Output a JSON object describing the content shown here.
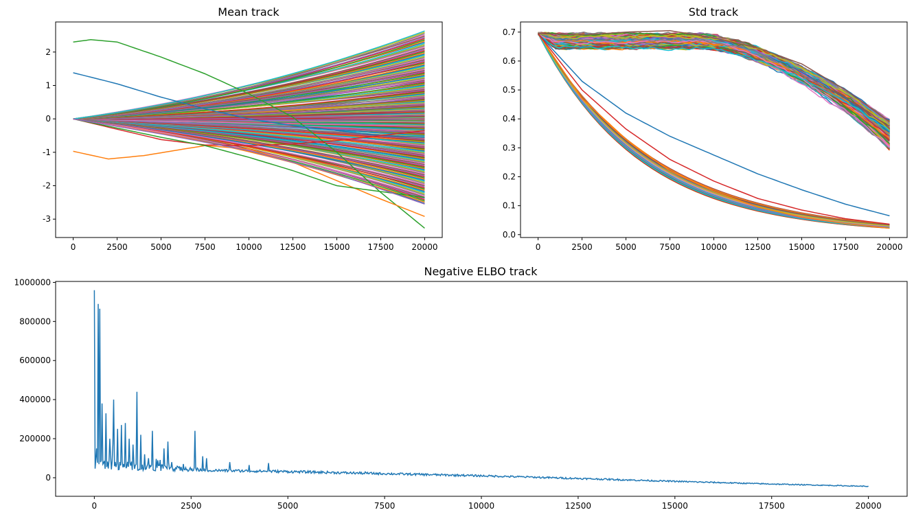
{
  "chart_data": [
    {
      "type": "line",
      "title": "Mean track",
      "xlabel": "",
      "ylabel": "",
      "xlim": [
        -1000,
        21000
      ],
      "ylim": [
        -3.55,
        2.9
      ],
      "xticks": [
        0,
        2500,
        5000,
        7500,
        10000,
        12500,
        15000,
        17500,
        20000
      ],
      "yticks": [
        -3,
        -2,
        -1,
        0,
        1,
        2
      ],
      "grid": false,
      "legend": "none",
      "bundle": {
        "count": 220,
        "x_range": [
          0,
          20000
        ],
        "start": 0,
        "end_range": [
          -2.55,
          2.65
        ]
      },
      "series": [
        {
          "color": "#2ca02c",
          "x": [
            0,
            1000,
            2500,
            5000,
            7500,
            10000,
            12500,
            15000,
            17500,
            20000
          ],
          "values": [
            2.3,
            2.37,
            2.3,
            1.85,
            1.35,
            0.75,
            0.05,
            -1.0,
            -2.2,
            -3.27
          ]
        },
        {
          "color": "#1f77b4",
          "x": [
            0,
            2500,
            5000,
            7500,
            10000,
            12500,
            15000,
            17500,
            20000
          ],
          "values": [
            1.38,
            1.05,
            0.65,
            0.3,
            0.0,
            -0.2,
            -0.35,
            -0.5,
            -0.55
          ]
        },
        {
          "color": "#ff7f0e",
          "x": [
            0,
            2000,
            4000,
            7500,
            10000,
            12500,
            15000,
            17500,
            20000
          ],
          "values": [
            -0.97,
            -1.2,
            -1.1,
            -0.8,
            -0.9,
            -1.3,
            -1.85,
            -2.4,
            -2.92
          ]
        },
        {
          "color": "#d62728",
          "x": [
            0,
            5000,
            7500,
            10000,
            12500,
            15000,
            17500,
            20000
          ],
          "values": [
            0,
            -0.62,
            -0.78,
            -0.8,
            -0.75,
            -0.65,
            -0.5,
            -0.35
          ]
        },
        {
          "color": "#2ca02c",
          "x": [
            0,
            5000,
            7500,
            10000,
            12500,
            15000,
            20000
          ],
          "values": [
            0,
            -0.55,
            -0.8,
            -1.15,
            -1.55,
            -2.0,
            -2.35
          ]
        },
        {
          "color": "#9467bd",
          "x": [
            0,
            5000,
            10000,
            15000,
            20000
          ],
          "values": [
            0,
            -0.45,
            -0.95,
            -1.65,
            -2.55
          ]
        }
      ]
    },
    {
      "type": "line",
      "title": "Std track",
      "xlabel": "",
      "ylabel": "",
      "xlim": [
        -1000,
        21000
      ],
      "ylim": [
        -0.01,
        0.735
      ],
      "xticks": [
        0,
        2500,
        5000,
        7500,
        10000,
        12500,
        15000,
        17500,
        20000
      ],
      "yticks": [
        0.0,
        0.1,
        0.2,
        0.3,
        0.4,
        0.5,
        0.6,
        0.7
      ],
      "grid": false,
      "legend": "none",
      "upper_band": {
        "count": 180,
        "start": 0.695,
        "plateau": 0.67,
        "end_range": [
          0.295,
          0.395
        ]
      },
      "lower_band": {
        "count": 60,
        "start": 0.695,
        "end_range": [
          0.022,
          0.036
        ]
      },
      "series": [
        {
          "color": "#1f77b4",
          "x": [
            0,
            2500,
            5000,
            7500,
            10000,
            12500,
            15000,
            17500,
            20000
          ],
          "values": [
            0.695,
            0.53,
            0.42,
            0.34,
            0.275,
            0.21,
            0.155,
            0.105,
            0.065
          ]
        },
        {
          "color": "#ff7f0e",
          "x": [
            0,
            2500,
            5000,
            7500,
            10000,
            12500,
            15000,
            17500,
            20000
          ],
          "values": [
            0.695,
            0.47,
            0.33,
            0.22,
            0.15,
            0.095,
            0.06,
            0.038,
            0.022
          ]
        },
        {
          "color": "#d62728",
          "x": [
            0,
            2500,
            5000,
            7500,
            10000,
            12500,
            15000,
            17500,
            20000
          ],
          "values": [
            0.695,
            0.5,
            0.365,
            0.26,
            0.185,
            0.125,
            0.085,
            0.055,
            0.036
          ]
        },
        {
          "color": "#8c564b",
          "x": [
            0,
            2500,
            5000,
            7500,
            10000,
            12500,
            15000,
            17500,
            20000
          ],
          "values": [
            0.695,
            0.69,
            0.7,
            0.705,
            0.68,
            0.645,
            0.59,
            0.5,
            0.39
          ]
        }
      ]
    },
    {
      "type": "line",
      "title": "Negative ELBO track",
      "xlabel": "",
      "ylabel": "",
      "xlim": [
        -1000,
        21000
      ],
      "ylim": [
        -95000,
        1005000
      ],
      "xticks": [
        0,
        2500,
        5000,
        7500,
        10000,
        12500,
        15000,
        17500,
        20000
      ],
      "yticks": [
        0,
        200000,
        400000,
        600000,
        800000,
        1000000
      ],
      "grid": false,
      "legend": "none",
      "series": [
        {
          "color": "#1f77b4",
          "baseline": {
            "x": [
              0,
              1000,
              2500,
              5000,
              7500,
              10000,
              12500,
              15000,
              17500,
              20000
            ],
            "values": [
              45000,
              37000,
              32000,
              25000,
              15000,
              5000,
              -8000,
              -22000,
              -35000,
              -46000
            ]
          },
          "spikes": [
            {
              "x": 0,
              "value": 960000
            },
            {
              "x": 60,
              "value": 150000
            },
            {
              "x": 100,
              "value": 890000
            },
            {
              "x": 140,
              "value": 865000
            },
            {
              "x": 200,
              "value": 380000
            },
            {
              "x": 300,
              "value": 330000
            },
            {
              "x": 350,
              "value": 310000
            },
            {
              "x": 400,
              "value": 200000
            },
            {
              "x": 450,
              "value": 280000
            },
            {
              "x": 500,
              "value": 400000
            },
            {
              "x": 600,
              "value": 250000
            },
            {
              "x": 700,
              "value": 270000
            },
            {
              "x": 800,
              "value": 280000
            },
            {
              "x": 900,
              "value": 200000
            },
            {
              "x": 1000,
              "value": 170000
            },
            {
              "x": 1100,
              "value": 440000
            },
            {
              "x": 1200,
              "value": 220000
            },
            {
              "x": 1300,
              "value": 120000
            },
            {
              "x": 1400,
              "value": 100000
            },
            {
              "x": 1500,
              "value": 240000
            },
            {
              "x": 1650,
              "value": 90000
            },
            {
              "x": 1800,
              "value": 150000
            },
            {
              "x": 1900,
              "value": 185000
            },
            {
              "x": 2000,
              "value": 80000
            },
            {
              "x": 2150,
              "value": 205000
            },
            {
              "x": 2300,
              "value": 70000
            },
            {
              "x": 2450,
              "value": 80000
            },
            {
              "x": 2600,
              "value": 240000
            },
            {
              "x": 2800,
              "value": 110000
            },
            {
              "x": 2900,
              "value": 100000
            },
            {
              "x": 3500,
              "value": 80000
            },
            {
              "x": 4000,
              "value": 65000
            },
            {
              "x": 4500,
              "value": 75000
            },
            {
              "x": 7000,
              "value": 30000
            },
            {
              "x": 9500,
              "value": 15000
            },
            {
              "x": 11300,
              "value": 5000
            }
          ]
        }
      ]
    }
  ]
}
